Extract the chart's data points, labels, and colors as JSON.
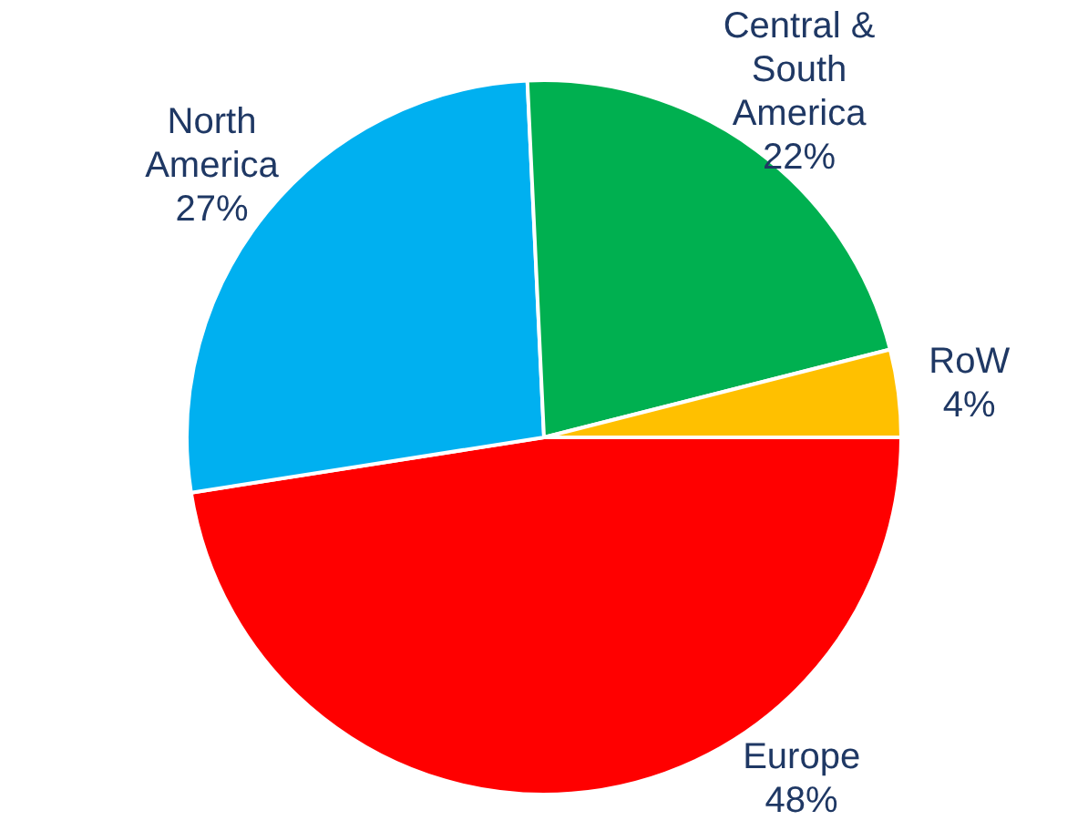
{
  "chart_data": {
    "type": "pie",
    "categories": [
      "Europe",
      "North America",
      "Central & South America",
      "RoW"
    ],
    "values": [
      48,
      27,
      22,
      4
    ],
    "colors": [
      "#ff0000",
      "#00b0f0",
      "#00b050",
      "#ffc000"
    ],
    "value_labels": [
      "48%",
      "27%",
      "22%",
      "4%"
    ],
    "legend": false
  }
}
